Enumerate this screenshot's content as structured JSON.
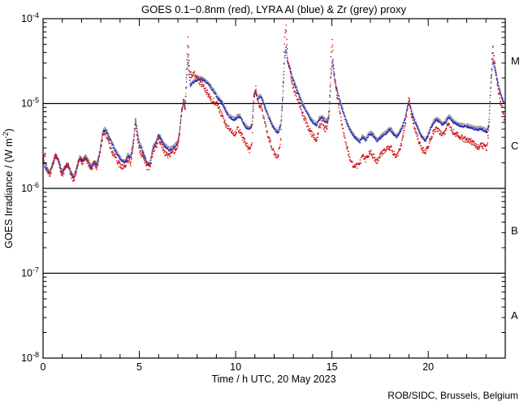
{
  "credit": "ROB/SIDC, Brussels, Belgium",
  "colors": {
    "red": "#cc1111",
    "blue": "#2a2ab8",
    "grey": "#999999",
    "axis": "#000000",
    "background": "#ffffff"
  },
  "chart_data": {
    "type": "scatter",
    "title": "GOES 0.1−0.8nm (red), LYRA Al (blue) & Zr (grey) proxy",
    "xlabel": "Time / h UTC, 20 May 2023",
    "ylabel": {
      "pre": "GOES Irradiance / (W m",
      "sup": "-2",
      "post": ")"
    },
    "xlim": [
      0,
      24
    ],
    "x_major_ticks": [
      0,
      5,
      10,
      15,
      20
    ],
    "x_minor_step": 1,
    "y_scale": "log",
    "ylim": [
      1e-08,
      0.0001
    ],
    "y_tick_exponents": [
      -4,
      -5,
      -6,
      -7,
      -8
    ],
    "hlines": [
      1e-05,
      1e-06,
      1e-07
    ],
    "flare_classes": [
      {
        "label": "M",
        "upper": 0.0001,
        "lower": 1e-05
      },
      {
        "label": "C",
        "upper": 1e-05,
        "lower": 1e-06
      },
      {
        "label": "B",
        "upper": 1e-06,
        "lower": 1e-07
      },
      {
        "label": "A",
        "upper": 1e-07,
        "lower": 1e-08
      }
    ],
    "legend_position": "none",
    "grid": false,
    "unit_note": "series values in units of 1e-6 W m^-2, keypoints read from plot",
    "x_hours": [
      0.0,
      0.1,
      0.2,
      0.35,
      0.5,
      0.65,
      0.8,
      1.0,
      1.15,
      1.3,
      1.45,
      1.6,
      1.75,
      1.9,
      2.05,
      2.2,
      2.35,
      2.5,
      2.65,
      2.8,
      2.95,
      3.1,
      3.22,
      3.35,
      3.5,
      3.7,
      3.9,
      4.1,
      4.25,
      4.4,
      4.55,
      4.7,
      4.8,
      4.9,
      5.0,
      5.1,
      5.25,
      5.4,
      5.55,
      5.7,
      5.85,
      6.0,
      6.12,
      6.25,
      6.4,
      6.55,
      6.7,
      6.85,
      7.0,
      7.1,
      7.2,
      7.3,
      7.38,
      7.45,
      7.52,
      7.58,
      7.65,
      7.75,
      7.85,
      7.95,
      8.05,
      8.15,
      8.3,
      8.45,
      8.6,
      8.75,
      8.9,
      9.05,
      9.2,
      9.35,
      9.5,
      9.65,
      9.8,
      9.95,
      10.12,
      10.25,
      10.4,
      10.55,
      10.72,
      10.85,
      10.95,
      11.05,
      11.15,
      11.3,
      11.45,
      11.6,
      11.75,
      11.9,
      12.05,
      12.2,
      12.35,
      12.45,
      12.55,
      12.62,
      12.7,
      12.8,
      12.95,
      13.1,
      13.25,
      13.45,
      13.6,
      13.8,
      14.0,
      14.2,
      14.35,
      14.5,
      14.62,
      14.75,
      14.85,
      14.95,
      15.02,
      15.1,
      15.2,
      15.35,
      15.5,
      15.7,
      15.9,
      16.1,
      16.3,
      16.45,
      16.6,
      16.75,
      16.9,
      17.05,
      17.2,
      17.35,
      17.5,
      17.65,
      17.8,
      17.95,
      18.05,
      18.2,
      18.35,
      18.5,
      18.65,
      18.8,
      18.92,
      19.0,
      19.1,
      19.25,
      19.4,
      19.55,
      19.7,
      19.85,
      20.0,
      20.15,
      20.3,
      20.45,
      20.6,
      20.75,
      20.9,
      21.05,
      21.15,
      21.3,
      21.45,
      21.6,
      21.8,
      22.0,
      22.2,
      22.4,
      22.6,
      22.75,
      22.9,
      23.05,
      23.15,
      23.25,
      23.35,
      23.45,
      23.55,
      23.65,
      23.75,
      23.85,
      23.95
    ],
    "series": [
      {
        "name": "GOES 0.1−0.8nm",
        "color_key": "red",
        "values": [
          2.4,
          2.6,
          1.7,
          1.45,
          1.9,
          2.5,
          2.1,
          1.4,
          1.8,
          1.9,
          1.45,
          1.25,
          1.7,
          2.3,
          2.0,
          2.35,
          1.95,
          1.7,
          2.0,
          1.8,
          2.5,
          4.2,
          4.6,
          3.8,
          3.0,
          2.4,
          2.0,
          1.8,
          1.75,
          2.2,
          2.0,
          3.3,
          6.0,
          3.8,
          2.9,
          2.6,
          2.1,
          1.8,
          1.75,
          2.7,
          3.0,
          3.8,
          3.3,
          2.9,
          2.5,
          2.4,
          2.6,
          2.8,
          3.2,
          4.6,
          8.5,
          11.0,
          9.0,
          25,
          62,
          30,
          22,
          21.5,
          22.5,
          21,
          19.5,
          18,
          16.5,
          14.5,
          12.5,
          11,
          10.5,
          9.8,
          8.0,
          7.0,
          5.6,
          5.0,
          4.6,
          4.4,
          5.0,
          4.6,
          3.8,
          3.3,
          2.8,
          3.6,
          12,
          15.5,
          10,
          9.5,
          7.0,
          5.0,
          3.8,
          3.0,
          2.5,
          2.3,
          4.0,
          15,
          60,
          79,
          35,
          26,
          17,
          13,
          11,
          8.0,
          6.5,
          5.0,
          4.2,
          3.7,
          5.2,
          6.2,
          5.0,
          5.0,
          8.0,
          35,
          55,
          25,
          15,
          10,
          6.0,
          3.5,
          2.4,
          1.9,
          1.8,
          2.0,
          2.4,
          2.2,
          2.5,
          2.6,
          2.3,
          2.1,
          2.4,
          2.7,
          2.9,
          3.1,
          3.0,
          2.6,
          2.4,
          2.8,
          3.6,
          5.5,
          8.5,
          11.5,
          8.0,
          5.5,
          4.3,
          3.4,
          2.9,
          2.6,
          3.2,
          4.0,
          4.8,
          5.1,
          4.7,
          4.3,
          4.8,
          6.0,
          5.4,
          4.6,
          4.3,
          4.1,
          3.9,
          3.7,
          3.6,
          3.3,
          3.0,
          3.2,
          3.1,
          3.0,
          5.0,
          20,
          48,
          30,
          20,
          14,
          10.5,
          8.5,
          6.5
        ]
      },
      {
        "name": "LYRA Al proxy",
        "color_key": "blue",
        "values": [
          2.2,
          1.8,
          1.6,
          1.5,
          1.9,
          2.4,
          2.1,
          1.5,
          1.75,
          1.85,
          1.5,
          1.3,
          1.7,
          2.25,
          2.1,
          2.3,
          2.05,
          1.75,
          2.0,
          1.9,
          2.6,
          4.5,
          4.9,
          4.4,
          3.6,
          2.9,
          2.4,
          2.1,
          2.0,
          2.4,
          2.3,
          3.5,
          6.4,
          4.4,
          3.3,
          3.0,
          2.4,
          1.95,
          1.9,
          2.9,
          3.3,
          4.2,
          3.8,
          3.3,
          3.0,
          2.8,
          2.9,
          3.1,
          3.4,
          4.8,
          8.0,
          10.5,
          8.5,
          18,
          35,
          22,
          16,
          17,
          18,
          18.5,
          19,
          19.5,
          19,
          18,
          16.5,
          15,
          13.5,
          11.5,
          10.8,
          9.5,
          8.0,
          7.0,
          6.6,
          6.4,
          7.0,
          6.8,
          5.8,
          5.2,
          4.9,
          5.5,
          12,
          13.5,
          11,
          12,
          10,
          8.0,
          6.5,
          5.5,
          4.8,
          4.5,
          5.5,
          12,
          35,
          45,
          30,
          26,
          20,
          16,
          13,
          10,
          8.5,
          7.0,
          6.0,
          5.5,
          6.5,
          6.8,
          6.2,
          6.0,
          7.0,
          20,
          32,
          22,
          16,
          12,
          9.0,
          6.5,
          5.0,
          4.2,
          3.7,
          3.5,
          4.0,
          3.7,
          4.2,
          4.4,
          4.0,
          3.6,
          3.9,
          4.2,
          4.4,
          4.8,
          4.9,
          4.3,
          4.0,
          4.4,
          5.2,
          6.5,
          8.8,
          10.5,
          8.5,
          6.5,
          5.5,
          4.5,
          3.9,
          3.6,
          4.2,
          5.2,
          6.0,
          6.4,
          6.0,
          5.6,
          6.0,
          6.9,
          6.6,
          6.0,
          5.7,
          5.5,
          5.4,
          5.3,
          5.2,
          5.0,
          4.9,
          5.0,
          4.8,
          4.6,
          5.5,
          15,
          33,
          26,
          20,
          16,
          13,
          11,
          10
        ]
      },
      {
        "name": "LYRA Zr proxy",
        "color_key": "grey",
        "values": [
          2.3,
          1.9,
          1.7,
          1.6,
          2.0,
          2.55,
          2.2,
          1.6,
          1.85,
          1.95,
          1.6,
          1.4,
          1.8,
          2.4,
          2.2,
          2.45,
          2.2,
          1.85,
          2.1,
          2.0,
          2.75,
          4.8,
          5.2,
          4.65,
          3.8,
          3.1,
          2.55,
          2.2,
          2.1,
          2.55,
          2.45,
          3.7,
          6.8,
          4.65,
          3.5,
          3.2,
          2.55,
          2.05,
          2.0,
          3.1,
          3.5,
          4.45,
          4.0,
          3.5,
          3.2,
          3.0,
          3.1,
          3.3,
          3.6,
          5.1,
          8.5,
          11.1,
          9.0,
          19,
          37,
          23.5,
          17,
          18,
          19,
          19.6,
          20,
          20.7,
          20,
          19,
          17.5,
          16,
          14.3,
          12.2,
          11.4,
          10.1,
          8.5,
          7.4,
          7.0,
          6.8,
          7.4,
          7.2,
          6.1,
          5.5,
          5.2,
          5.8,
          12.7,
          14.3,
          11.7,
          12.7,
          10.6,
          8.5,
          6.9,
          5.8,
          5.1,
          4.8,
          5.8,
          12.7,
          37,
          48,
          32,
          27.5,
          21,
          17,
          13.8,
          10.6,
          9.0,
          7.4,
          6.4,
          5.8,
          6.9,
          7.2,
          6.6,
          6.4,
          7.4,
          21,
          34,
          23.5,
          17,
          12.7,
          9.5,
          6.9,
          5.3,
          4.45,
          3.9,
          3.7,
          4.25,
          3.9,
          4.45,
          4.65,
          4.25,
          3.8,
          4.1,
          4.45,
          4.65,
          5.1,
          5.2,
          4.55,
          4.25,
          4.65,
          5.5,
          6.9,
          9.3,
          11.1,
          9.0,
          6.9,
          5.8,
          4.8,
          4.1,
          3.8,
          4.45,
          5.5,
          6.4,
          6.8,
          6.4,
          5.9,
          6.4,
          7.3,
          7.0,
          6.4,
          6.0,
          5.8,
          5.7,
          5.6,
          5.5,
          5.3,
          5.2,
          5.3,
          5.1,
          4.9,
          5.8,
          16,
          35,
          27.5,
          21,
          17,
          13.8,
          11.7,
          10.6
        ]
      }
    ]
  }
}
